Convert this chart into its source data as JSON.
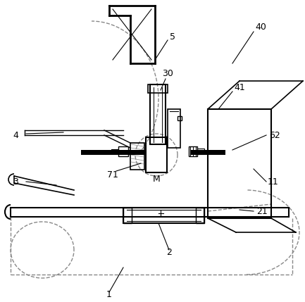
{
  "bg_color": "#ffffff",
  "line_color": "#000000",
  "dashed_color": "#888888",
  "figsize": [
    4.33,
    4.29
  ],
  "dpi": 100
}
